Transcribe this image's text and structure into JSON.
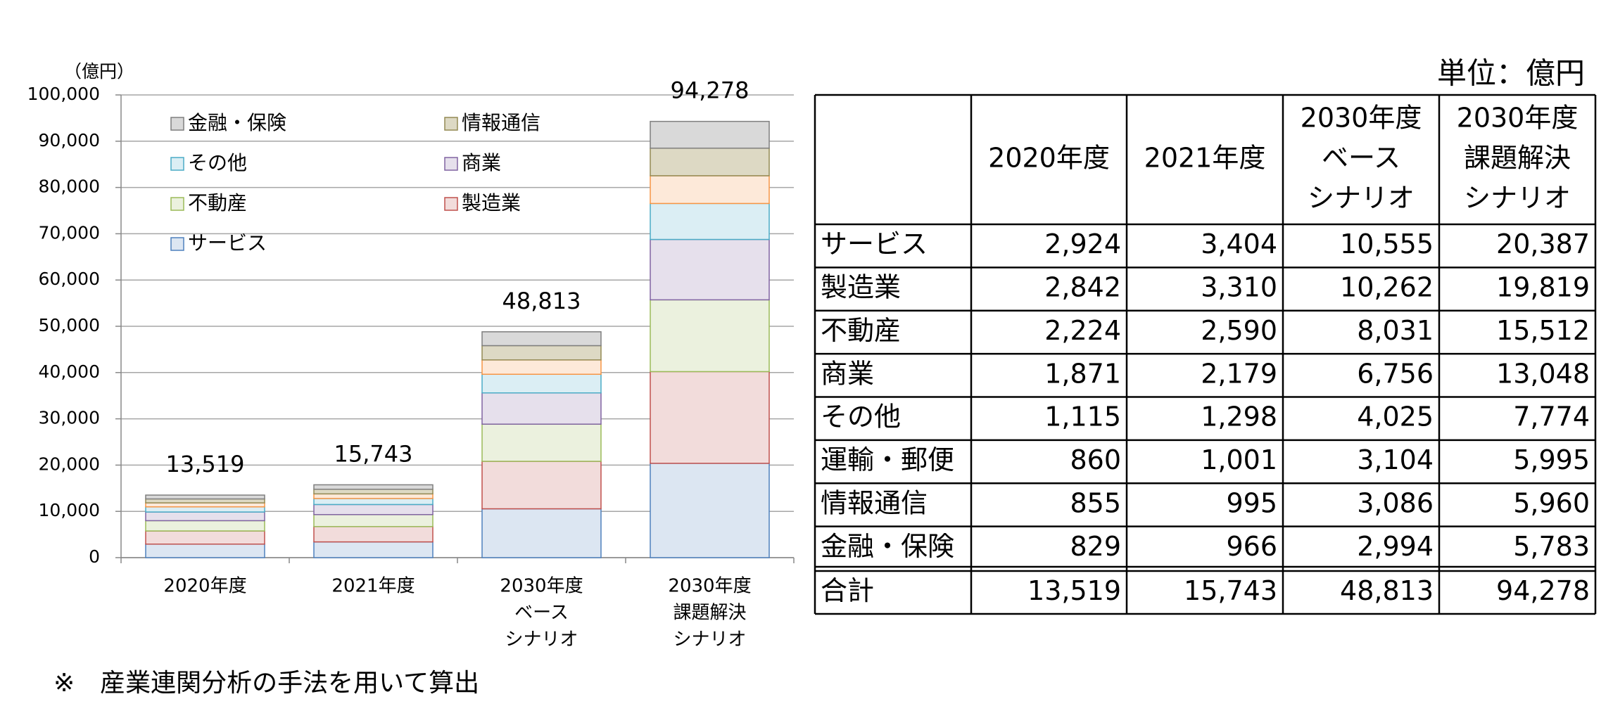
{
  "chart_data": {
    "type": "stacked_bar",
    "unit_label": "（億円）",
    "categories": [
      [
        "2020年度"
      ],
      [
        "2021年度"
      ],
      [
        "2030年度",
        "ベース",
        "シナリオ"
      ],
      [
        "2030年度",
        "課題解決",
        "シナリオ"
      ]
    ],
    "series": [
      {
        "name": "サービス",
        "color": "#dce6f2",
        "edge_color": "#4f81bd",
        "values": [
          2924,
          3404,
          10555,
          20387
        ]
      },
      {
        "name": "製造業",
        "color": "#f2dcdb",
        "edge_color": "#c0504d",
        "values": [
          2842,
          3310,
          10262,
          19819
        ]
      },
      {
        "name": "不動産",
        "color": "#ebf1de",
        "edge_color": "#9bbb59",
        "values": [
          2224,
          2590,
          8031,
          15512
        ]
      },
      {
        "name": "商業",
        "color": "#e6e0ec",
        "edge_color": "#8064a2",
        "values": [
          1871,
          2179,
          6756,
          13048
        ]
      },
      {
        "name": "その他",
        "color": "#dbeef4",
        "edge_color": "#4bacc6",
        "values": [
          1115,
          1298,
          4025,
          7774
        ]
      },
      {
        "name": "運輸・郵便",
        "color": "#fde9d9",
        "edge_color": "#f79646",
        "in_legend": false,
        "values": [
          860,
          1001,
          3104,
          5995
        ]
      },
      {
        "name": "情報通信",
        "color": "#ddd9c4",
        "edge_color": "#948a54",
        "values": [
          855,
          995,
          3086,
          5960
        ]
      },
      {
        "name": "金融・保険",
        "color": "#d9d9d9",
        "edge_color": "#7f7f7f",
        "values": [
          829,
          966,
          2994,
          5783
        ]
      }
    ],
    "totals": [
      13519,
      15743,
      48813,
      94278
    ],
    "total_labels": [
      "13,519",
      "15,743",
      "48,813",
      "94,278"
    ],
    "ylim": [
      0,
      100000
    ],
    "yticks": [
      0,
      {
        "value": 10000,
        "label": "10,000"
      },
      {
        "value": 20000,
        "label": "20,000"
      },
      {
        "value": 30000,
        "label": "30,000"
      },
      {
        "value": 40000,
        "label": "40,000"
      },
      {
        "value": 50000,
        "label": "50,000"
      },
      {
        "value": 60000,
        "label": "60,000"
      },
      {
        "value": 70000,
        "label": "70,000"
      },
      {
        "value": 80000,
        "label": "80,000"
      },
      {
        "value": 90000,
        "label": "90,000"
      },
      {
        "value": 100000,
        "label": "100,000"
      }
    ],
    "grid": true,
    "legend_columns": 2
  },
  "unit": "単位：億円",
  "table": {
    "columns": [
      [
        "2020年度"
      ],
      [
        "2021年度"
      ],
      [
        "2030年度",
        "ベース",
        "シナリオ"
      ],
      [
        "2030年度",
        "課題解決",
        "シナリオ"
      ]
    ],
    "rows": [
      {
        "label": "サービス",
        "cells": [
          "2,924",
          "3,404",
          "10,555",
          "20,387"
        ]
      },
      {
        "label": "製造業",
        "cells": [
          "2,842",
          "3,310",
          "10,262",
          "19,819"
        ]
      },
      {
        "label": "不動産",
        "cells": [
          "2,224",
          "2,590",
          "8,031",
          "15,512"
        ]
      },
      {
        "label": "商業",
        "cells": [
          "1,871",
          "2,179",
          "6,756",
          "13,048"
        ]
      },
      {
        "label": "その他",
        "cells": [
          "1,115",
          "1,298",
          "4,025",
          "7,774"
        ]
      },
      {
        "label": "運輸・郵便",
        "cells": [
          "860",
          "1,001",
          "3,104",
          "5,995"
        ]
      },
      {
        "label": "情報通信",
        "cells": [
          "855",
          "995",
          "3,086",
          "5,960"
        ]
      },
      {
        "label": "金融・保険",
        "cells": [
          "829",
          "966",
          "2,994",
          "5,783"
        ]
      }
    ],
    "total": {
      "label": "合計",
      "cells": [
        "13,519",
        "15,743",
        "48,813",
        "94,278"
      ]
    }
  },
  "footnote": "※　産業連関分析の手法を用いて算出"
}
